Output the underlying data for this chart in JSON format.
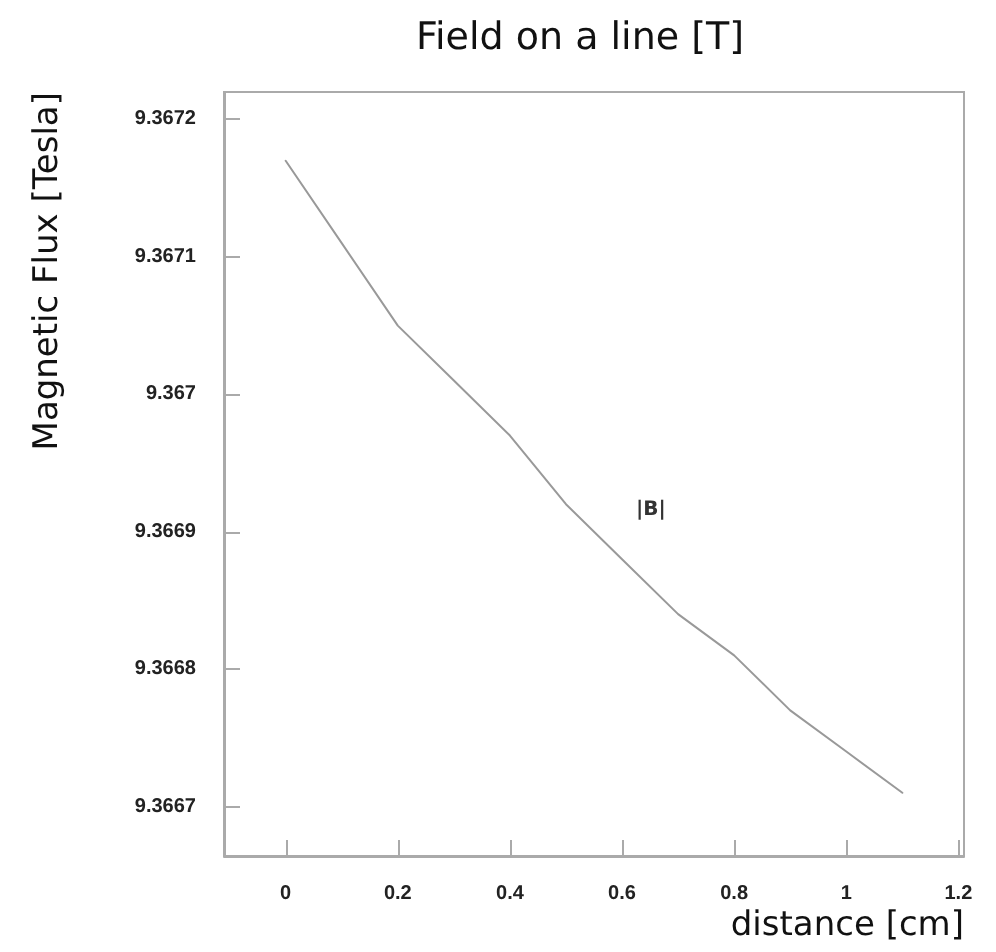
{
  "chart_data": {
    "type": "line",
    "title": "Field on a line [T]",
    "xlabel": "distance [cm]",
    "ylabel": "Magnetic Flux [Tesla]",
    "x": [
      0,
      0.1,
      0.2,
      0.3,
      0.4,
      0.5,
      0.6,
      0.7,
      0.8,
      0.9,
      1.0,
      1.1
    ],
    "series": [
      {
        "color": "#999999",
        "values": [
          9.36717,
          9.36711,
          9.36705,
          9.36701,
          9.36697,
          9.36692,
          9.36688,
          9.36684,
          9.36681,
          9.36677,
          9.36674,
          9.36671
        ]
      }
    ],
    "annotations": [
      "|B|"
    ],
    "xlim": [
      -0.11,
      1.21
    ],
    "ylim": [
      9.366664,
      9.36722
    ],
    "xticks": [
      0,
      0.2,
      0.4,
      0.6,
      0.8,
      1,
      1.2
    ],
    "yticks": [
      9.3667,
      9.3668,
      9.3669,
      9.367,
      9.3671,
      9.3672
    ],
    "grid": false,
    "marker": "none",
    "line_style": "solid"
  }
}
